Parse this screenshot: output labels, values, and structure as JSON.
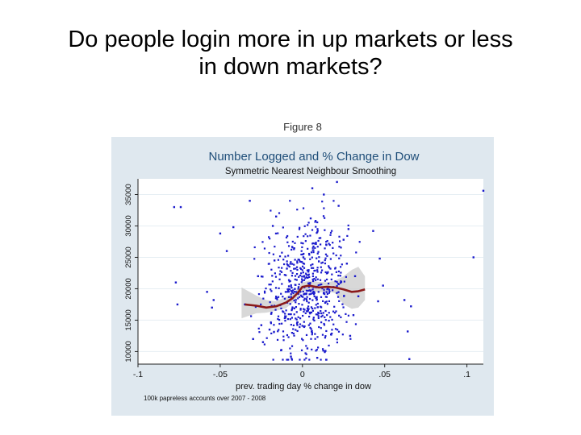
{
  "slide": {
    "title_line1": "Do people login more in up markets or less",
    "title_line2": "in down markets?"
  },
  "figure_label": "Figure 8",
  "colors": {
    "panel_bg": "#dfe8ef",
    "plot_bg": "#ffffff",
    "title_color": "#1f4e79",
    "points": "#1a1acc",
    "smooth_line": "#8b1a1a",
    "band": "#c8c8c8"
  },
  "chart_data": {
    "type": "scatter",
    "title": "Number Logged and % Change in Dow",
    "subtitle": "Symmetric Nearest Neighbour Smoothing",
    "xlabel": "prev. trading day % change in dow",
    "ylabel": "",
    "note": "100k papreless accounts over 2007 - 2008",
    "xlim": [
      -0.1,
      0.11
    ],
    "ylim": [
      8000,
      37500
    ],
    "x_ticks": [
      -0.1,
      -0.05,
      0,
      0.05,
      0.1
    ],
    "x_tick_labels": [
      "-.1",
      "-.05",
      "0",
      ".05",
      ".1"
    ],
    "y_ticks": [
      10000,
      15000,
      20000,
      25000,
      30000,
      35000
    ],
    "y_tick_labels": [
      "10000",
      "15000",
      "20000",
      "25000",
      "30000",
      "35000"
    ],
    "grid": "horizontal",
    "series": [
      {
        "type": "scatter",
        "points": [
          [
            -0.078,
            33000
          ],
          [
            -0.074,
            33000
          ],
          [
            -0.076,
            17500
          ],
          [
            -0.077,
            21000
          ],
          [
            -0.05,
            28800
          ],
          [
            -0.046,
            26000
          ],
          [
            -0.042,
            29800
          ],
          [
            -0.032,
            34000
          ],
          [
            -0.055,
            17000
          ],
          [
            -0.054,
            18200
          ],
          [
            -0.058,
            19500
          ],
          [
            -0.025,
            14200
          ],
          [
            -0.024,
            11500
          ],
          [
            -0.027,
            22000
          ],
          [
            -0.03,
            12000
          ],
          [
            -0.035,
            17500
          ],
          [
            -0.018,
            30000
          ],
          [
            -0.017,
            24500
          ],
          [
            -0.016,
            31500
          ],
          [
            -0.019,
            16000
          ],
          [
            -0.02,
            13500
          ],
          [
            0.005,
            31200
          ],
          [
            0.008,
            30800
          ],
          [
            0.006,
            36000
          ],
          [
            0.013,
            35000
          ],
          [
            0.021,
            37000
          ],
          [
            0.022,
            33200
          ],
          [
            0.025,
            27800
          ],
          [
            0.028,
            29500
          ],
          [
            0.027,
            24000
          ],
          [
            0.029,
            12500
          ],
          [
            0.031,
            15800
          ],
          [
            0.034,
            18800
          ],
          [
            0.032,
            22000
          ],
          [
            0.043,
            29200
          ],
          [
            0.047,
            24800
          ],
          [
            0.046,
            18000
          ],
          [
            0.049,
            20500
          ],
          [
            0.062,
            18200
          ],
          [
            0.066,
            17200
          ],
          [
            0.065,
            8800
          ],
          [
            0.064,
            13200
          ],
          [
            0.104,
            25000
          ],
          [
            0.11,
            35600
          ],
          [
            0.003,
            10500
          ],
          [
            -0.007,
            9200
          ],
          [
            0.009,
            9000
          ],
          [
            0.014,
            10100
          ],
          [
            -0.013,
            10200
          ]
        ]
      },
      {
        "type": "line",
        "name": "",
        "points": [
          [
            -0.035,
            17500
          ],
          [
            -0.028,
            17300
          ],
          [
            -0.022,
            17000
          ],
          [
            -0.016,
            17200
          ],
          [
            -0.01,
            17800
          ],
          [
            -0.006,
            18500
          ],
          [
            -0.003,
            19300
          ],
          [
            0.0,
            20300
          ],
          [
            0.004,
            20500
          ],
          [
            0.01,
            20200
          ],
          [
            0.015,
            20300
          ],
          [
            0.02,
            20200
          ],
          [
            0.025,
            19900
          ],
          [
            0.03,
            19500
          ],
          [
            0.034,
            19600
          ],
          [
            0.038,
            19900
          ]
        ],
        "band_upper": [
          [
            -0.037,
            20200
          ],
          [
            -0.028,
            18900
          ],
          [
            -0.022,
            18200
          ],
          [
            -0.016,
            18000
          ],
          [
            -0.01,
            18700
          ],
          [
            -0.006,
            19200
          ],
          [
            -0.003,
            20000
          ],
          [
            0.0,
            21000
          ],
          [
            0.004,
            21300
          ],
          [
            0.01,
            21100
          ],
          [
            0.015,
            21000
          ],
          [
            0.02,
            21300
          ],
          [
            0.025,
            22000
          ],
          [
            0.03,
            23000
          ],
          [
            0.034,
            23500
          ],
          [
            0.038,
            22000
          ]
        ],
        "band_lower": [
          [
            -0.037,
            15300
          ],
          [
            -0.028,
            16100
          ],
          [
            -0.022,
            16200
          ],
          [
            -0.016,
            16500
          ],
          [
            -0.01,
            16900
          ],
          [
            -0.006,
            17800
          ],
          [
            -0.003,
            18600
          ],
          [
            0.0,
            19600
          ],
          [
            0.004,
            19800
          ],
          [
            0.01,
            19400
          ],
          [
            0.015,
            19600
          ],
          [
            0.02,
            19300
          ],
          [
            0.025,
            17500
          ],
          [
            0.03,
            16800
          ],
          [
            0.034,
            17000
          ],
          [
            0.038,
            18200
          ]
        ]
      }
    ]
  }
}
